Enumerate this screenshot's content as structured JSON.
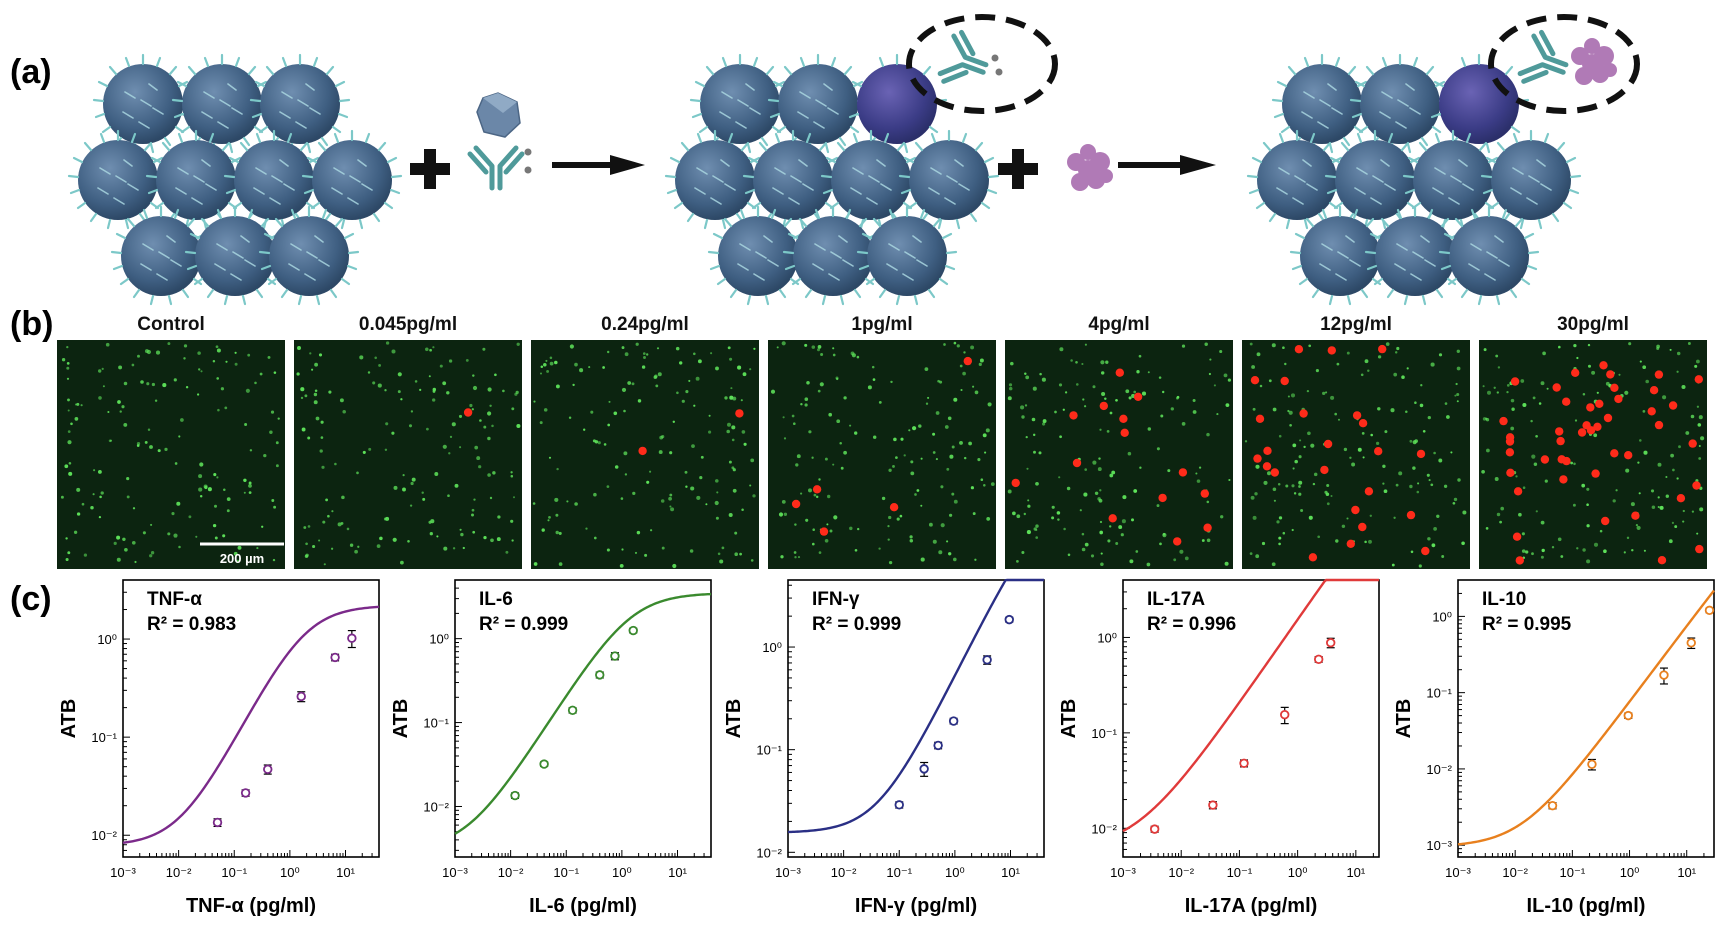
{
  "panel_labels": {
    "a": "(a)",
    "b": "(b)",
    "c": "(c)"
  },
  "panel_b": {
    "conditions": [
      "Control",
      "0.045pg/ml",
      "0.24pg/ml",
      "1pg/ml",
      "4pg/ml",
      "12pg/ml",
      "30pg/ml"
    ],
    "red_spot_counts": [
      0,
      1,
      2,
      5,
      14,
      24,
      45
    ],
    "scale_bar_label": "200 µm",
    "colors": {
      "background": "#0c2410",
      "green_spot": "#5ee35a",
      "red_spot": "#ff2b1a"
    }
  },
  "chart_data": [
    {
      "type": "line",
      "name_label": "TNF-α",
      "r2_label": "R² = 0.983",
      "xlabel": "TNF-α (pg/ml)",
      "ylabel": "ATB",
      "xscale": "log",
      "yscale": "log",
      "xlim": [
        0.001,
        40
      ],
      "ylim": [
        0.006,
        4
      ],
      "xticks": [
        0.001,
        0.01,
        0.1,
        1,
        10
      ],
      "xtick_labels": [
        "10⁻³",
        "10⁻²",
        "10⁻¹",
        "10⁰",
        "10¹"
      ],
      "yticks": [
        0.01,
        0.1,
        1
      ],
      "ytick_labels": [
        "10⁻²",
        "10⁻¹",
        "10⁰"
      ],
      "color": "#7b2a8a",
      "points": [
        {
          "x": 0.05,
          "y": 0.0135,
          "err": 0.0012
        },
        {
          "x": 0.16,
          "y": 0.027,
          "err": 0.002
        },
        {
          "x": 0.4,
          "y": 0.047,
          "err": 0.005
        },
        {
          "x": 1.6,
          "y": 0.26,
          "err": 0.03
        },
        {
          "x": 6.5,
          "y": 0.65,
          "err": 0.05
        },
        {
          "x": 13,
          "y": 1.02,
          "err": 0.2
        }
      ],
      "fit": {
        "bottom": 0.0078,
        "top": 2.2,
        "logEC50": 0.26,
        "hill": 1.1
      }
    },
    {
      "type": "line",
      "name_label": "IL-6",
      "r2_label": "R² = 0.999",
      "xlabel": "IL-6 (pg/ml)",
      "ylabel": "ATB",
      "xscale": "log",
      "yscale": "log",
      "xlim": [
        0.001,
        40
      ],
      "ylim": [
        0.0025,
        5
      ],
      "xticks": [
        0.001,
        0.01,
        0.1,
        1,
        10
      ],
      "xtick_labels": [
        "10⁻³",
        "10⁻²",
        "10⁻¹",
        "10⁰",
        "10¹"
      ],
      "yticks": [
        0.01,
        0.1,
        1
      ],
      "ytick_labels": [
        "10⁻²",
        "10⁻¹",
        "10⁰"
      ],
      "color": "#3a8a2e",
      "points": [
        {
          "x": 0.012,
          "y": 0.0135,
          "err": 0.001
        },
        {
          "x": 0.04,
          "y": 0.032,
          "err": 0.002
        },
        {
          "x": 0.13,
          "y": 0.14,
          "err": 0.01
        },
        {
          "x": 0.4,
          "y": 0.37,
          "err": 0.03
        },
        {
          "x": 0.75,
          "y": 0.62,
          "err": 0.06
        },
        {
          "x": 1.6,
          "y": 1.25,
          "err": 0.08
        }
      ],
      "fit": {
        "bottom": 0.003,
        "top": 3.5,
        "logEC50": 0.15,
        "hill": 1.05
      }
    },
    {
      "type": "line",
      "name_label": "IFN-γ",
      "r2_label": "R² = 0.999",
      "xlabel": "IFN-γ (pg/ml)",
      "ylabel": "ATB",
      "xscale": "log",
      "yscale": "log",
      "xlim": [
        0.001,
        40
      ],
      "ylim": [
        0.009,
        4.5
      ],
      "xticks": [
        0.001,
        0.01,
        0.1,
        1,
        10
      ],
      "xtick_labels": [
        "10⁻³",
        "10⁻²",
        "10⁻¹",
        "10⁰",
        "10¹"
      ],
      "yticks": [
        0.01,
        0.1,
        1
      ],
      "ytick_labels": [
        "10⁻²",
        "10⁻¹",
        "10⁰"
      ],
      "color": "#2a2f85",
      "points": [
        {
          "x": 0.1,
          "y": 0.029,
          "err": 0.002
        },
        {
          "x": 0.28,
          "y": 0.065,
          "err": 0.01
        },
        {
          "x": 0.5,
          "y": 0.11,
          "err": 0.008
        },
        {
          "x": 0.95,
          "y": 0.19,
          "err": 0.012
        },
        {
          "x": 3.8,
          "y": 0.75,
          "err": 0.07
        },
        {
          "x": 9.5,
          "y": 1.85,
          "err": 0.1
        }
      ],
      "fit": {
        "bottom": 0.0155,
        "top": 30,
        "logEC50": 1.6,
        "hill": 1.1
      }
    },
    {
      "type": "line",
      "name_label": "IL-17A",
      "r2_label": "R² = 0.996",
      "xlabel": "IL-17A (pg/ml)",
      "ylabel": "ATB",
      "xscale": "log",
      "yscale": "log",
      "xlim": [
        0.001,
        25
      ],
      "ylim": [
        0.005,
        4
      ],
      "xticks": [
        0.001,
        0.01,
        0.1,
        1,
        10
      ],
      "xtick_labels": [
        "10⁻³",
        "10⁻²",
        "10⁻¹",
        "10⁰",
        "10¹"
      ],
      "yticks": [
        0.01,
        0.1,
        1
      ],
      "ytick_labels": [
        "10⁻²",
        "10⁻¹",
        "10⁰"
      ],
      "color": "#e03a3a",
      "points": [
        {
          "x": 0.0035,
          "y": 0.0098,
          "err": 0.0007
        },
        {
          "x": 0.035,
          "y": 0.0175,
          "err": 0.0015
        },
        {
          "x": 0.12,
          "y": 0.048,
          "err": 0.004
        },
        {
          "x": 0.6,
          "y": 0.155,
          "err": 0.03
        },
        {
          "x": 2.3,
          "y": 0.59,
          "err": 0.04
        },
        {
          "x": 3.7,
          "y": 0.88,
          "err": 0.1
        }
      ],
      "fit": {
        "bottom": 0.0058,
        "top": 200,
        "logEC50": 2.4,
        "hill": 0.88
      }
    },
    {
      "type": "line",
      "name_label": "IL-10",
      "r2_label": "R² = 0.995",
      "xlabel": "IL-10 (pg/ml)",
      "ylabel": "ATB",
      "xscale": "log",
      "yscale": "log",
      "xlim": [
        0.001,
        30
      ],
      "ylim": [
        0.0007,
        3
      ],
      "xticks": [
        0.001,
        0.01,
        0.1,
        1,
        10
      ],
      "xtick_labels": [
        "10⁻³",
        "10⁻²",
        "10⁻¹",
        "10⁰",
        "10¹"
      ],
      "yticks": [
        0.001,
        0.01,
        0.1,
        1
      ],
      "ytick_labels": [
        "10⁻³",
        "10⁻²",
        "10⁻¹",
        "10⁰"
      ],
      "color": "#e8801e",
      "points": [
        {
          "x": 0.045,
          "y": 0.0033,
          "err": 0.0003
        },
        {
          "x": 0.22,
          "y": 0.0115,
          "err": 0.0018
        },
        {
          "x": 0.95,
          "y": 0.05,
          "err": 0.004
        },
        {
          "x": 4.0,
          "y": 0.17,
          "err": 0.04
        },
        {
          "x": 12,
          "y": 0.45,
          "err": 0.07
        },
        {
          "x": 25,
          "y": 1.2,
          "err": 0.08
        }
      ],
      "fit": {
        "bottom": 0.00095,
        "top": 60,
        "logEC50": 2.9,
        "hill": 1.0
      }
    }
  ]
}
